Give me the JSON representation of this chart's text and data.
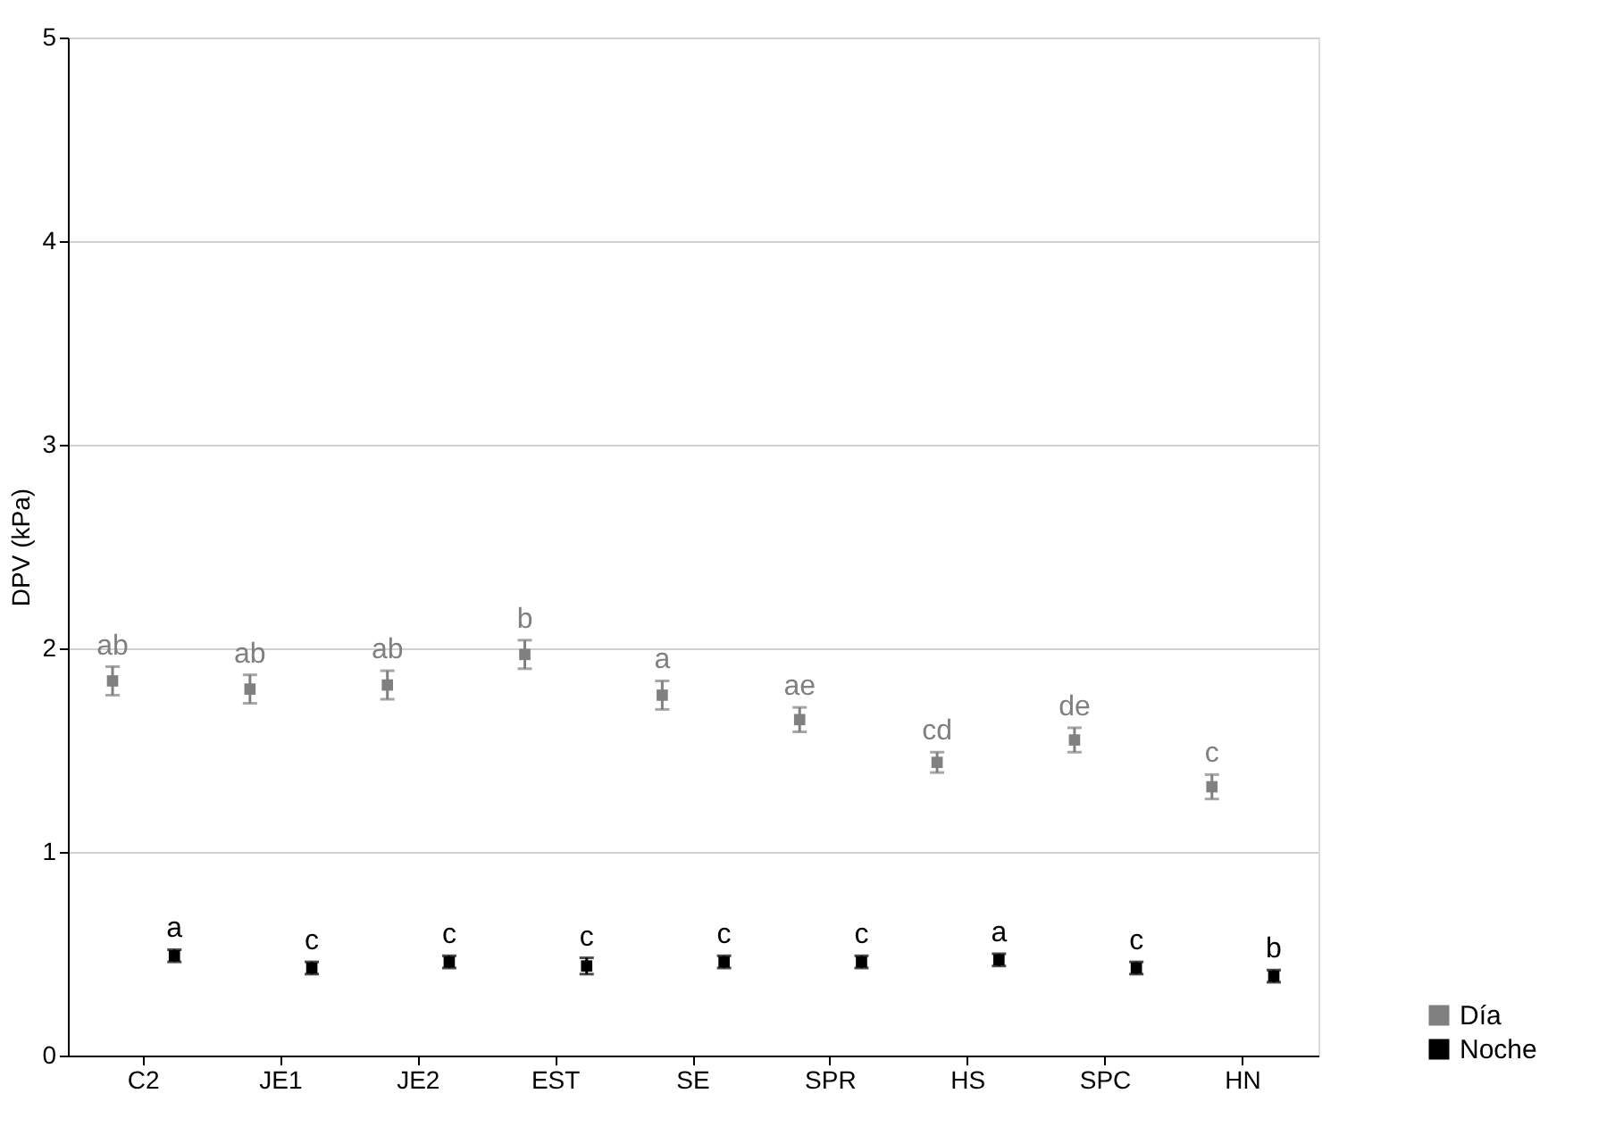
{
  "chart_data": {
    "type": "scatter",
    "ylabel": "DPV (kPa)",
    "categories": [
      "C2",
      "JE1",
      "JE2",
      "EST",
      "SE",
      "SPR",
      "HS",
      "SPC",
      "HN"
    ],
    "series": [
      {
        "name": "Día",
        "color": "#808080",
        "values": [
          1.84,
          1.8,
          1.82,
          1.97,
          1.77,
          1.65,
          1.44,
          1.55,
          1.32
        ],
        "errors": [
          0.07,
          0.07,
          0.07,
          0.07,
          0.07,
          0.06,
          0.05,
          0.06,
          0.06
        ],
        "value_labels": [
          "ab",
          "ab",
          "ab",
          "b",
          "a",
          "ae",
          "cd",
          "de",
          "c"
        ]
      },
      {
        "name": "Noche",
        "color": "#000000",
        "values": [
          0.49,
          0.43,
          0.46,
          0.44,
          0.46,
          0.46,
          0.47,
          0.43,
          0.39
        ],
        "errors": [
          0.03,
          0.03,
          0.03,
          0.04,
          0.03,
          0.03,
          0.03,
          0.03,
          0.03
        ],
        "value_labels": [
          "a",
          "c",
          "c",
          "c",
          "c",
          "c",
          "a",
          "c",
          "b"
        ]
      }
    ],
    "ylim": [
      0,
      5
    ],
    "yticks": [
      0,
      1,
      2,
      3,
      4,
      5
    ],
    "grid": "y",
    "legend": "bottom right",
    "marker": "square"
  }
}
